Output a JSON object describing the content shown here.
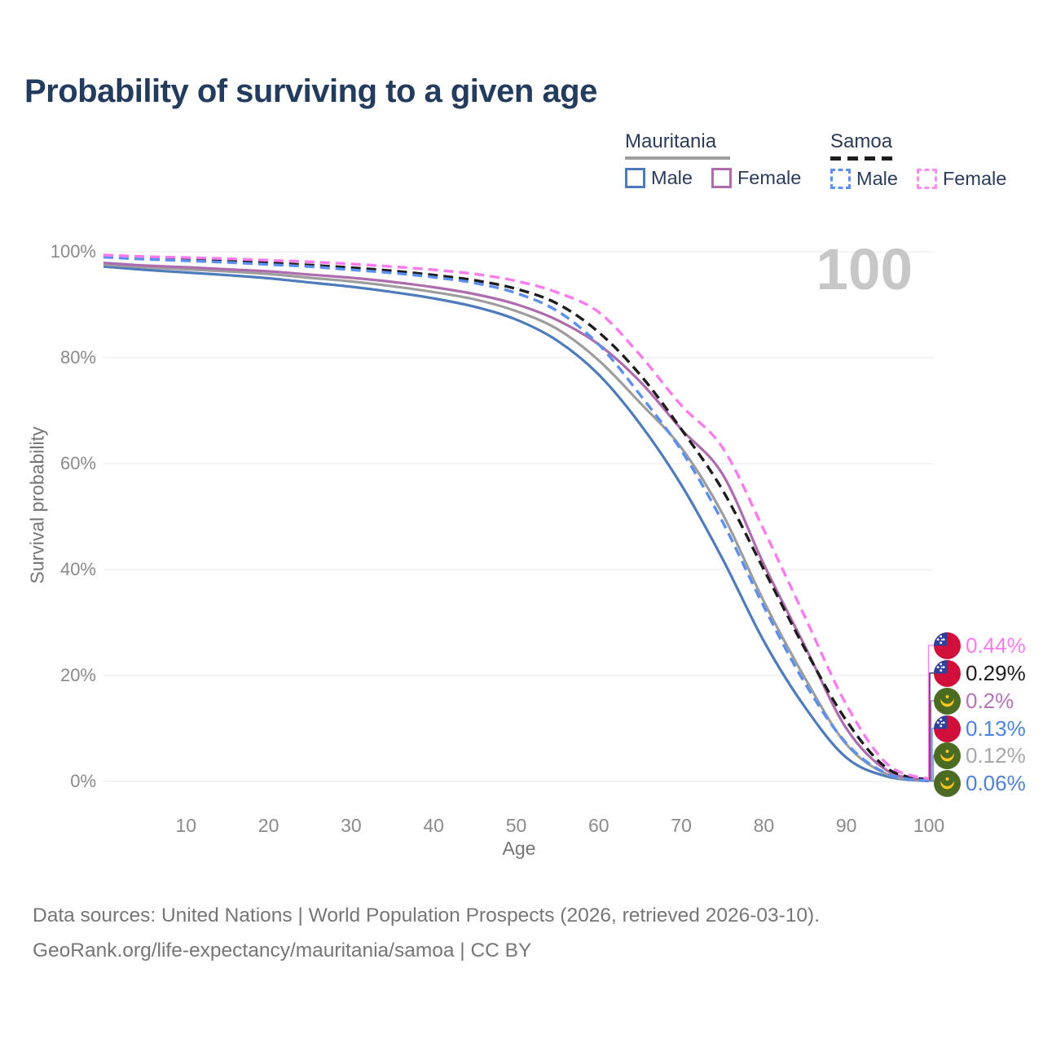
{
  "header": {
    "title": "Probability of surviving to a given age"
  },
  "legend": {
    "groups": [
      {
        "name": "Mauritania",
        "line_style": "solid",
        "underline_color": "#9e9e9e",
        "items": [
          {
            "label": "Male",
            "color": "#4d7bbb",
            "dashed": false
          },
          {
            "label": "Female",
            "color": "#ae6cae",
            "dashed": false
          }
        ]
      },
      {
        "name": "Samoa",
        "line_style": "dashed",
        "underline_color": "#1d1d1d",
        "items": [
          {
            "label": "Male",
            "color": "#5b8ff0",
            "dashed": true
          },
          {
            "label": "Female",
            "color": "#fb8cf0",
            "dashed": true
          }
        ]
      }
    ]
  },
  "watermark": "100",
  "chart_data": {
    "type": "line",
    "title": "Probability of surviving to a given age",
    "xlabel": "Age",
    "ylabel": "Survival probability",
    "xlim": [
      0,
      100
    ],
    "ylim": [
      0,
      100
    ],
    "grid": "horizontal gridlines at 0,20,40,60,80,100 percent",
    "legend_position": "top-right",
    "x_ticks": [
      10,
      20,
      30,
      40,
      50,
      60,
      70,
      80,
      90,
      100
    ],
    "y_ticks": [
      {
        "label": "0%",
        "value": 0
      },
      {
        "label": "20%",
        "value": 20
      },
      {
        "label": "40%",
        "value": 40
      },
      {
        "label": "60%",
        "value": 60
      },
      {
        "label": "80%",
        "value": 80
      },
      {
        "label": "100%",
        "value": 100
      }
    ],
    "x": [
      0,
      5,
      10,
      15,
      20,
      25,
      30,
      35,
      40,
      45,
      50,
      55,
      60,
      65,
      70,
      75,
      80,
      85,
      90,
      95,
      100
    ],
    "series": [
      {
        "id": "samoa-female",
        "name": "Samoa Female",
        "country": "Samoa",
        "sex": "Female",
        "color": "#fb7bee",
        "label_color": "#fb7bee",
        "dashed": true,
        "flag": "samoa",
        "end_label": "0.44%",
        "values": [
          99.4,
          99.1,
          98.9,
          98.7,
          98.4,
          98.1,
          97.7,
          97.2,
          96.6,
          95.8,
          94.5,
          92.3,
          88.6,
          80.5,
          71.0,
          63.0,
          47.5,
          31.0,
          14.5,
          3.2,
          0.44
        ]
      },
      {
        "id": "samoa-all",
        "name": "Samoa",
        "country": "Samoa",
        "sex": "Both",
        "color": "#1d1d1d",
        "label_color": "#1d1d1d",
        "dashed": true,
        "flag": "samoa",
        "end_label": "0.29%",
        "values": [
          99.1,
          98.8,
          98.5,
          98.2,
          97.9,
          97.5,
          97.0,
          96.4,
          95.6,
          94.6,
          93.0,
          90.2,
          84.8,
          76.8,
          66.5,
          55.0,
          40.0,
          25.0,
          11.5,
          2.4,
          0.29
        ]
      },
      {
        "id": "mauritania-female",
        "name": "Mauritania Female",
        "country": "Mauritania",
        "sex": "Female",
        "color": "#ae6cae",
        "label_color": "#b673b6",
        "dashed": false,
        "flag": "mauritania",
        "end_label": "0.2%",
        "values": [
          97.9,
          97.4,
          97.1,
          96.7,
          96.3,
          95.7,
          95.1,
          94.3,
          93.3,
          92.0,
          90.1,
          87.1,
          82.5,
          75.5,
          66.5,
          58.0,
          41.0,
          25.5,
          10.0,
          2.0,
          0.2
        ]
      },
      {
        "id": "samoa-male",
        "name": "Samoa Male",
        "country": "Samoa",
        "sex": "Male",
        "color": "#5b8ff0",
        "label_color": "#4d83e2",
        "dashed": true,
        "flag": "samoa",
        "end_label": "0.13%",
        "values": [
          99.0,
          98.6,
          98.3,
          98.0,
          97.6,
          97.2,
          96.6,
          96.0,
          95.2,
          94.1,
          92.2,
          88.8,
          82.5,
          73.0,
          62.5,
          49.0,
          33.0,
          18.5,
          7.2,
          1.4,
          0.13
        ]
      },
      {
        "id": "mauritania-all",
        "name": "Mauritania",
        "country": "Mauritania",
        "sex": "Both",
        "color": "#9d9d9d",
        "label_color": "#a8a8a8",
        "dashed": false,
        "flag": "mauritania",
        "end_label": "0.12%",
        "values": [
          97.6,
          97.1,
          96.7,
          96.3,
          95.8,
          95.1,
          94.4,
          93.5,
          92.4,
          91.0,
          88.8,
          85.4,
          79.5,
          71.5,
          63.0,
          50.5,
          34.0,
          19.5,
          7.0,
          1.3,
          0.12
        ]
      },
      {
        "id": "mauritania-male",
        "name": "Mauritania Male",
        "country": "Mauritania",
        "sex": "Male",
        "color": "#4d7bbb",
        "label_color": "#4d80d8",
        "dashed": false,
        "flag": "mauritania",
        "end_label": "0.06%",
        "values": [
          97.2,
          96.6,
          96.1,
          95.6,
          95.0,
          94.2,
          93.4,
          92.4,
          91.2,
          89.6,
          87.2,
          83.2,
          76.8,
          67.5,
          56.0,
          42.0,
          26.5,
          14.0,
          4.5,
          0.9,
          0.06
        ]
      }
    ]
  },
  "footer": {
    "line1": "Data sources: United Nations | World Population Prospects (2026, retrieved 2026-03-10).",
    "line2": "GeoRank.org/life-expectancy/mauritania/samoa | CC BY"
  }
}
